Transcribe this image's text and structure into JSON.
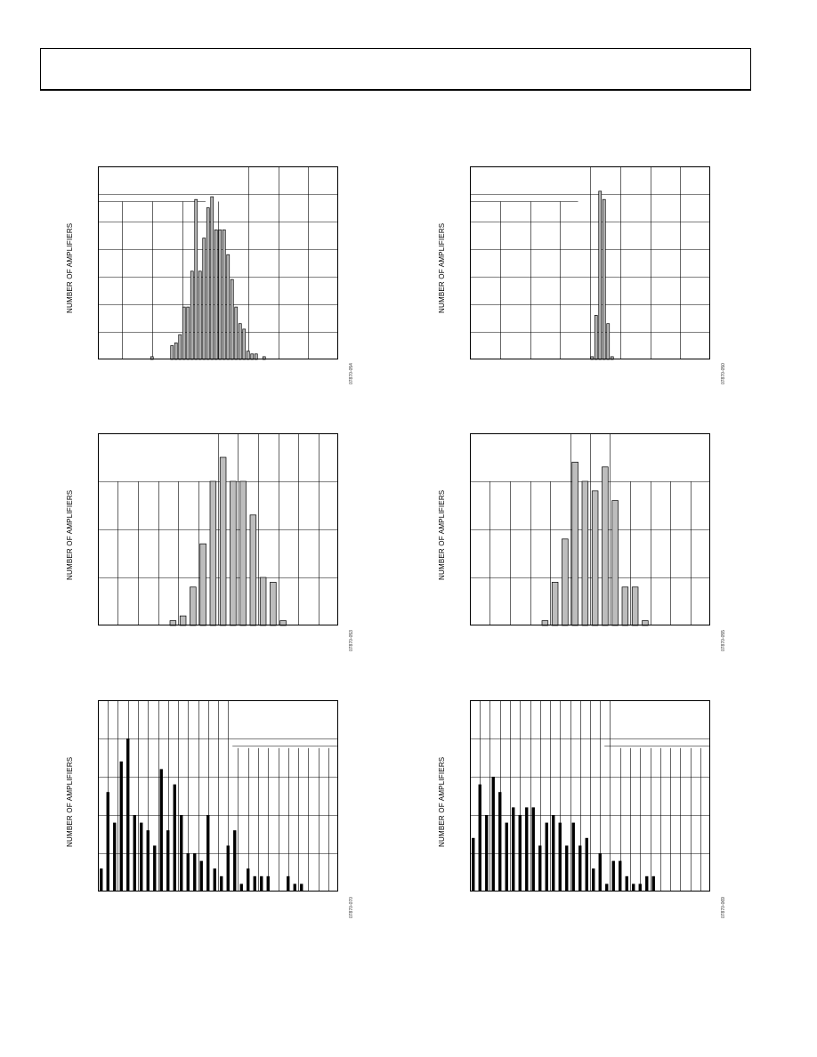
{
  "page": {
    "colors": {
      "gray_bar": "#bdbdbd",
      "black_bar": "#000000",
      "grid": "#000000"
    }
  },
  "chart_data": [
    {
      "type": "bar",
      "id": "c1",
      "ylabel": "NUMBER OF AMPLIFIERS",
      "figure_code": "07870-054",
      "bar_color": "gray",
      "hgrid": 7,
      "vlines": [
        0.1,
        0.225,
        0.35,
        0.5,
        0.625,
        0.75,
        0.875
      ],
      "vline_top": [
        0.182,
        0.182,
        0.182,
        0.182,
        0,
        0,
        0
      ],
      "partial_hline": [
        0.448,
        0.0
      ],
      "n_slots": 60,
      "ymax": 70,
      "values": [
        0,
        0,
        0,
        0,
        0,
        0,
        0,
        0,
        0,
        0,
        0,
        0,
        0,
        1,
        0,
        0,
        0,
        0,
        5,
        6,
        9,
        19,
        19,
        32,
        58,
        32,
        44,
        55,
        59,
        47,
        47,
        47,
        38,
        29,
        19,
        13,
        11,
        3,
        2,
        2,
        0,
        1,
        0,
        0,
        0,
        0,
        0,
        0,
        0,
        0,
        0,
        0,
        0,
        0,
        0,
        0,
        0,
        0,
        0,
        0
      ]
    },
    {
      "type": "bar",
      "id": "c2",
      "ylabel": "NUMBER OF AMPLIFIERS",
      "figure_code": "07870-050",
      "bar_color": "gray",
      "hgrid": 7,
      "vlines": [
        0.125,
        0.25,
        0.375,
        0.5,
        0.625,
        0.75,
        0.875
      ],
      "vline_top": [
        0.182,
        0.182,
        0.182,
        0,
        0,
        0,
        0
      ],
      "partial_hline": [
        0.45,
        0.0
      ],
      "n_slots": 60,
      "ymax": 70,
      "values": [
        0,
        0,
        0,
        0,
        0,
        0,
        0,
        0,
        0,
        0,
        0,
        0,
        0,
        0,
        0,
        0,
        0,
        0,
        0,
        0,
        0,
        0,
        0,
        0,
        0,
        0,
        0,
        0,
        0,
        0,
        1,
        16,
        61,
        58,
        13,
        1,
        0,
        0,
        0,
        0,
        0,
        0,
        0,
        0,
        0,
        0,
        0,
        0,
        0,
        0,
        0,
        0,
        0,
        0,
        0,
        0,
        0,
        0,
        0,
        0
      ]
    },
    {
      "type": "bar",
      "id": "c3",
      "ylabel": "NUMBER OF AMPLIFIERS",
      "figure_code": "07870-053",
      "bar_color": "gray",
      "hgrid": 4,
      "vlines": [
        0.083,
        0.167,
        0.25,
        0.333,
        0.417,
        0.5,
        0.583,
        0.667,
        0.75,
        0.833,
        0.917
      ],
      "vline_top": [
        0.25,
        0.25,
        0.25,
        0.25,
        0.25,
        0,
        0,
        0,
        0,
        0,
        0
      ],
      "partial_hline": null,
      "n_slots": 24,
      "ymax": 40,
      "values": [
        0,
        0,
        0,
        0,
        0,
        0,
        0,
        1,
        2,
        8,
        17,
        30,
        35,
        30,
        30,
        23,
        10,
        9,
        1,
        0,
        0,
        0,
        0,
        0
      ]
    },
    {
      "type": "bar",
      "id": "c4",
      "ylabel": "NUMBER OF AMPLIFIERS",
      "figure_code": "07870-055",
      "bar_color": "gray",
      "hgrid": 4,
      "vlines": [
        0.083,
        0.167,
        0.25,
        0.333,
        0.417,
        0.5,
        0.583,
        0.667,
        0.75,
        0.833,
        0.917
      ],
      "vline_top": [
        0.25,
        0.25,
        0.25,
        0.25,
        0,
        0,
        0,
        0.25,
        0.25,
        0.25,
        0.25
      ],
      "partial_hline": null,
      "n_slots": 24,
      "ymax": 40,
      "values": [
        0,
        0,
        0,
        0,
        0,
        0,
        0,
        1,
        9,
        18,
        34,
        30,
        28,
        33,
        26,
        8,
        8,
        1,
        0,
        0,
        0,
        0,
        0,
        0
      ]
    },
    {
      "type": "bar",
      "id": "c5",
      "ylabel": "NUMBER OF AMPLIFIERS",
      "figure_code": "07870-070",
      "bar_color": "black",
      "hgrid": 5,
      "vlines": [
        0.042,
        0.083,
        0.125,
        0.167,
        0.208,
        0.25,
        0.292,
        0.333,
        0.375,
        0.417,
        0.458,
        0.5,
        0.542,
        0.583,
        0.625,
        0.667,
        0.708,
        0.75,
        0.792,
        0.833,
        0.875,
        0.917,
        0.958
      ],
      "vline_top": [
        0,
        0,
        0,
        0,
        0,
        0,
        0,
        0,
        0,
        0,
        0,
        0,
        0,
        0.25,
        0.25,
        0.25,
        0.25,
        0.25,
        0.25,
        0.25,
        0.25,
        0.25,
        0.25
      ],
      "partial_hline": [
        0.56,
        1.0
      ],
      "n_slots": 36,
      "ymax": 50,
      "values": [
        6,
        26,
        18,
        34,
        40,
        20,
        18,
        16,
        12,
        32,
        16,
        28,
        20,
        10,
        10,
        8,
        20,
        6,
        4,
        12,
        16,
        2,
        6,
        4,
        4,
        4,
        0,
        0,
        4,
        2,
        2,
        0,
        0,
        0,
        0,
        0
      ]
    },
    {
      "type": "bar",
      "id": "c6",
      "ylabel": "NUMBER OF AMPLIFIERS",
      "figure_code": "07870-069",
      "bar_color": "black",
      "hgrid": 5,
      "vlines": [
        0.042,
        0.083,
        0.125,
        0.167,
        0.208,
        0.25,
        0.292,
        0.333,
        0.375,
        0.417,
        0.458,
        0.5,
        0.542,
        0.583,
        0.625,
        0.667,
        0.708,
        0.75,
        0.792,
        0.833,
        0.875,
        0.917,
        0.958
      ],
      "vline_top": [
        0,
        0,
        0,
        0,
        0,
        0,
        0,
        0,
        0,
        0,
        0,
        0,
        0,
        0,
        0.25,
        0.25,
        0.25,
        0.25,
        0.25,
        0.25,
        0.25,
        0.25,
        0.25
      ],
      "partial_hline": [
        0.56,
        1.0
      ],
      "n_slots": 36,
      "ymax": 50,
      "values": [
        14,
        28,
        20,
        30,
        26,
        18,
        22,
        20,
        22,
        22,
        12,
        18,
        20,
        18,
        12,
        18,
        12,
        14,
        6,
        10,
        2,
        8,
        8,
        4,
        2,
        2,
        4,
        4,
        0,
        0,
        0,
        0,
        0,
        0,
        0,
        0
      ]
    }
  ]
}
